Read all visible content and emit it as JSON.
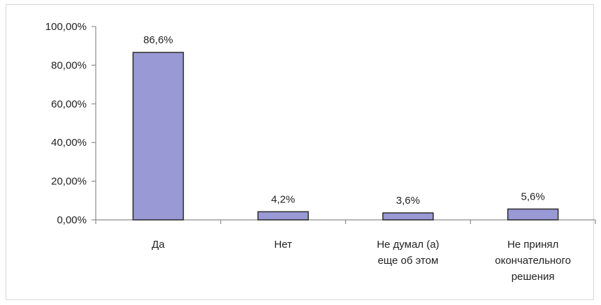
{
  "chart_data": {
    "type": "bar",
    "categories": [
      [
        "Да"
      ],
      [
        "Нет"
      ],
      [
        "Не думал (а)",
        "еще об этом"
      ],
      [
        "Не принял",
        "окончательного",
        "решения"
      ]
    ],
    "values": [
      86.6,
      4.2,
      3.6,
      5.6
    ],
    "data_labels": [
      "86,6%",
      "4,2%",
      "3,6%",
      "5,6%"
    ],
    "ylim": [
      0,
      100
    ],
    "y_ticks": [
      0,
      20,
      40,
      60,
      80,
      100
    ],
    "y_tick_labels": [
      "0,00%",
      "20,00%",
      "40,00%",
      "60,00%",
      "80,00%",
      "100,00%"
    ],
    "title": "",
    "xlabel": "",
    "ylabel": "",
    "grid": false,
    "legend": "none",
    "colors": {
      "bar_fill": "#9999d6",
      "bar_stroke": "#2a2a2a",
      "axis": "#8c8c8c"
    }
  }
}
